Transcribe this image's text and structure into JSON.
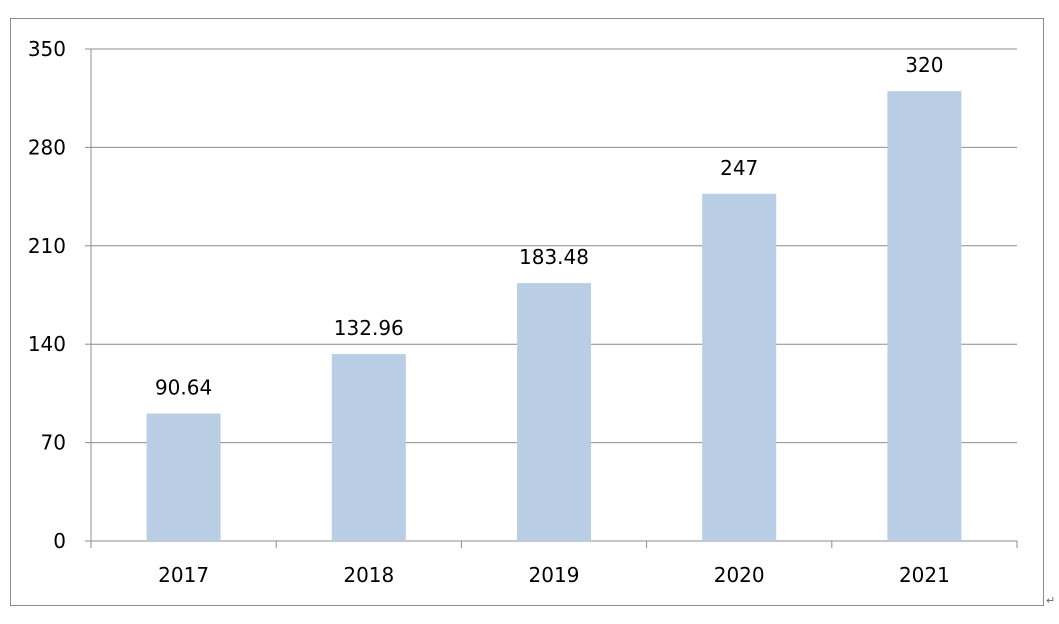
{
  "chart_data": {
    "type": "bar",
    "title": "",
    "xlabel": "",
    "ylabel": "",
    "categories": [
      "2017",
      "2018",
      "2019",
      "2020",
      "2021"
    ],
    "values": [
      90.64,
      132.96,
      183.48,
      247,
      320
    ],
    "data_labels": [
      "90.64",
      "132.96",
      "183.48",
      "247",
      "320"
    ],
    "ylim": [
      0,
      350
    ],
    "yticks": [
      "0",
      "70",
      "140",
      "210",
      "280",
      "350"
    ],
    "grid": true,
    "legend": "none",
    "bar_color": "#b9cde4"
  },
  "return_mark": "↵"
}
